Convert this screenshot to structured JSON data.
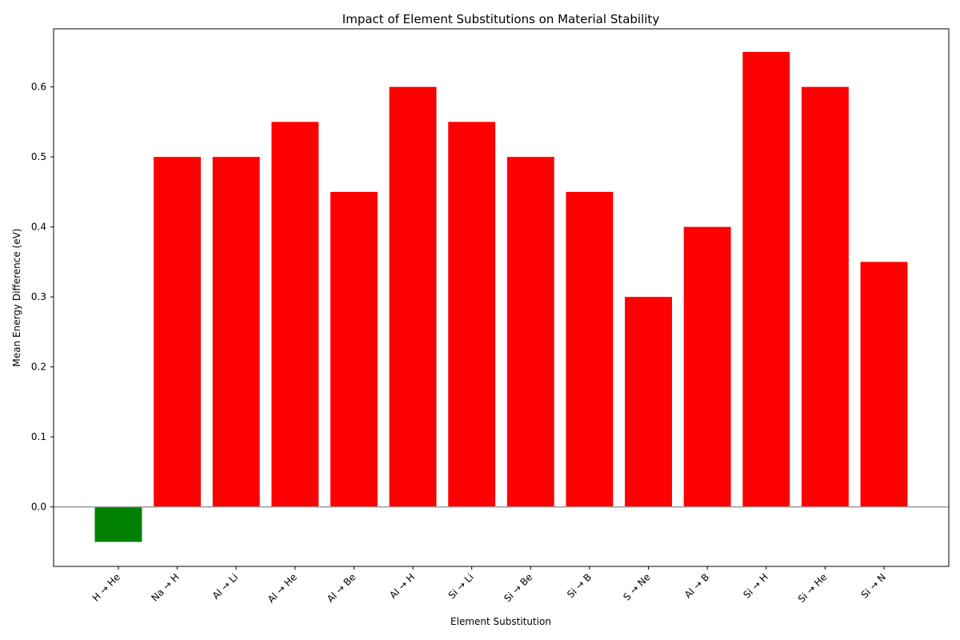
{
  "chart_data": {
    "type": "bar",
    "title": "Impact of Element Substitutions on Material Stability",
    "xlabel": "Element Substitution",
    "ylabel": "Mean Energy Difference (eV)",
    "categories": [
      "H → He",
      "Na → H",
      "Al → Li",
      "Al → He",
      "Al → Be",
      "Al → H",
      "Si → Li",
      "Si → Be",
      "Si → B",
      "S → Ne",
      "Al → B",
      "Si → H",
      "Si → He",
      "Si → N"
    ],
    "values": [
      -0.05,
      0.5,
      0.5,
      0.55,
      0.45,
      0.6,
      0.55,
      0.5,
      0.45,
      0.3,
      0.4,
      0.65,
      0.6,
      0.35
    ],
    "ylim": [
      -0.085,
      0.683
    ],
    "yticks": [
      0.0,
      0.1,
      0.2,
      0.3,
      0.4,
      0.5,
      0.6
    ],
    "ytick_labels": [
      "0.0",
      "0.1",
      "0.2",
      "0.3",
      "0.4",
      "0.5",
      "0.6"
    ],
    "colors": {
      "negative": "#008000",
      "positive": "#ff0000",
      "baseline": "#999999"
    },
    "grid": false,
    "legend": "none"
  }
}
